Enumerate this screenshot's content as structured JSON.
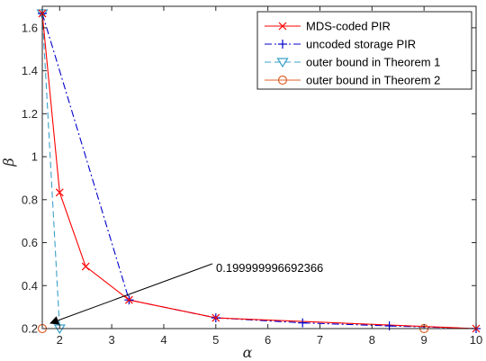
{
  "chart_data": {
    "type": "line",
    "title": "",
    "xlabel": "α",
    "ylabel": "β",
    "xlim": [
      1.6667,
      10
    ],
    "ylim": [
      0.2,
      1.7
    ],
    "xticks": [
      2,
      3,
      4,
      5,
      6,
      7,
      8,
      9,
      10
    ],
    "yticks": [
      0.2,
      0.4,
      0.6,
      0.8,
      1,
      1.2,
      1.4,
      1.6
    ],
    "xtick_labels": [
      "2",
      "3",
      "4",
      "5",
      "6",
      "7",
      "8",
      "9",
      "10"
    ],
    "ytick_labels": [
      "0.2",
      "0.4",
      "0.6",
      "0.8",
      "1",
      "1.2",
      "1.4",
      "1.6"
    ],
    "grid": false,
    "legend_position": "top-right",
    "series": [
      {
        "name": "MDS-coded PIR",
        "color": "#ff0000",
        "line_style": "solid",
        "marker": "x",
        "points": [
          [
            1.6667,
            1.6667
          ],
          [
            2,
            0.8333
          ],
          [
            2.5,
            0.4889
          ],
          [
            3.3333,
            0.3333
          ],
          [
            5,
            0.25
          ],
          [
            10,
            0.2
          ]
        ]
      },
      {
        "name": "uncoded storage PIR",
        "color": "#0000cc",
        "line_style": "dashdot",
        "marker": "+",
        "points": [
          [
            1.6667,
            1.6667
          ],
          [
            3.3333,
            0.3333
          ],
          [
            5,
            0.25
          ],
          [
            6.6667,
            0.2267
          ],
          [
            8.3333,
            0.2125
          ],
          [
            10,
            0.2
          ]
        ]
      },
      {
        "name": "outer bound in Theorem 1",
        "color": "#3aa0c8",
        "line_style": "dashed",
        "marker": "triangle-down",
        "points": [
          [
            1.6667,
            1.6667
          ],
          [
            2,
            0.2
          ]
        ]
      },
      {
        "name": "outer bound in Theorem 2",
        "color": "#e0622a",
        "line_style": "solid",
        "marker": "circle",
        "points": [
          [
            1.6667,
            0.2
          ],
          [
            9,
            0.2
          ]
        ]
      }
    ],
    "annotations": [
      {
        "text": "0.199999996692366",
        "point": [
          1.6667,
          0.2
        ]
      }
    ]
  }
}
